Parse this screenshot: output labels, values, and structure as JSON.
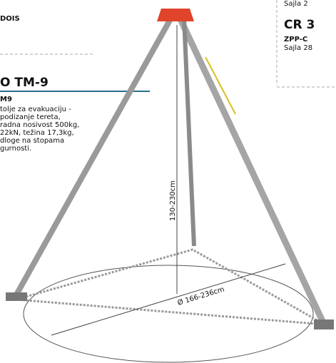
{
  "header": {
    "code": "DOIS"
  },
  "product": {
    "title": "O TM-9",
    "model": "M9",
    "description": [
      "tolje za evakuaciju -",
      "podizanje tereta,",
      "radna nosivost 500kg,",
      "22kN, težina 17,3kg,",
      "dloge na stopama",
      "gurnosti."
    ]
  },
  "side": {
    "cut_text": "Sajla 2",
    "title": "CR 3",
    "model": "ZPP-C",
    "text": "Sajla 28"
  },
  "dimensions": {
    "height": "130-230cm",
    "diameter": "Ø 166-236cm"
  }
}
